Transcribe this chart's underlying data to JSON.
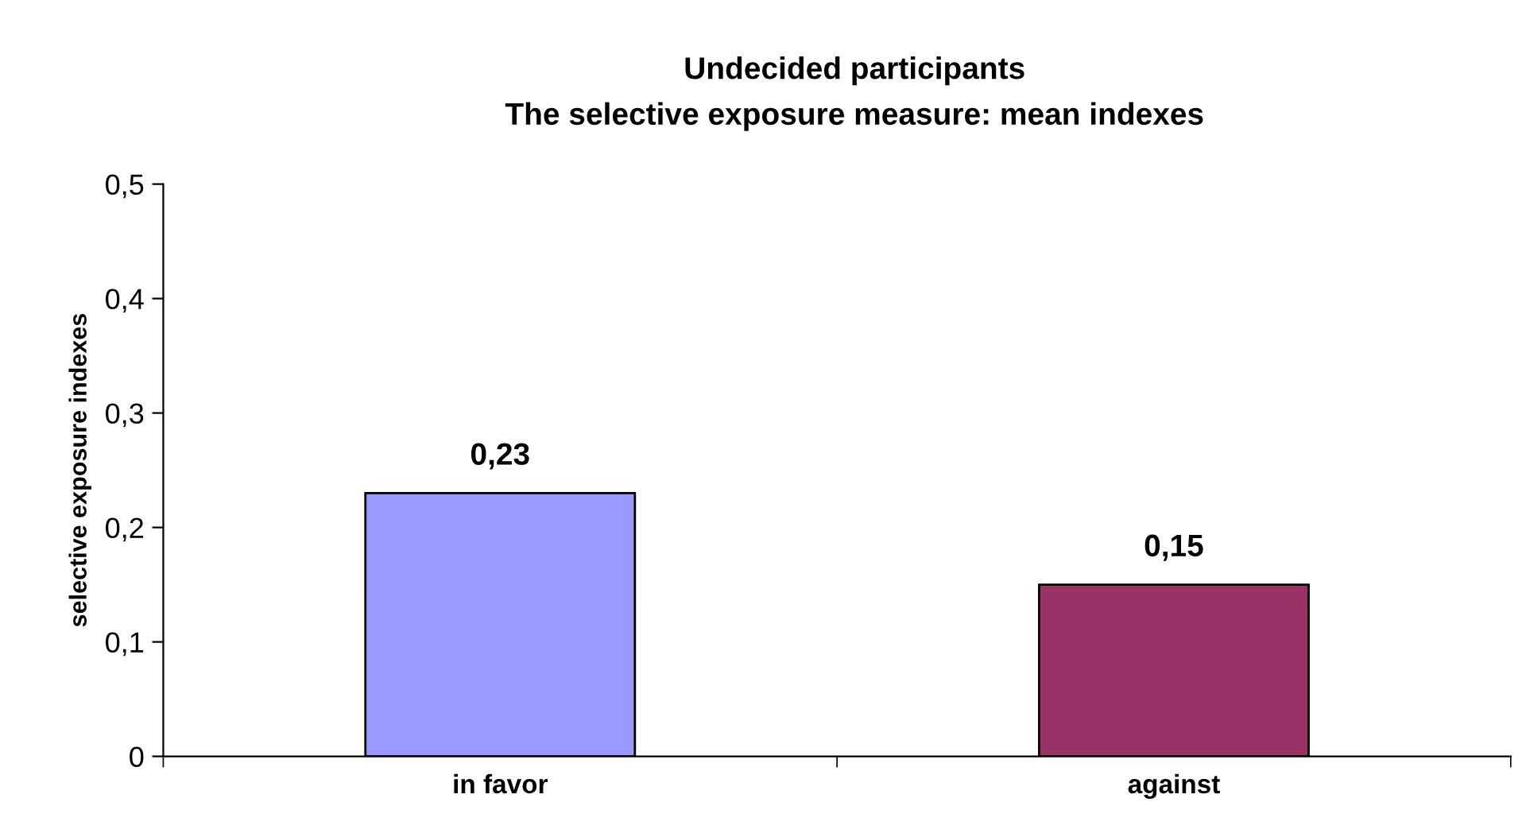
{
  "chart_data": {
    "type": "bar",
    "title": "Undecided participants",
    "subtitle": "The selective exposure measure: mean indexes",
    "ylabel": "selective exposure indexes",
    "categories": [
      "in favor",
      "against"
    ],
    "values": [
      0.23,
      0.15
    ],
    "colors": [
      "#9999ff",
      "#993366"
    ],
    "value_labels": [
      "0,23",
      "0,15"
    ],
    "ylim": [
      0,
      0.5
    ],
    "yticks": [
      {
        "value": 0,
        "label": "0"
      },
      {
        "value": 0.1,
        "label": "0,1"
      },
      {
        "value": 0.2,
        "label": "0,2"
      },
      {
        "value": 0.3,
        "label": "0,3"
      },
      {
        "value": 0.4,
        "label": "0,4"
      },
      {
        "value": 0.5,
        "label": "0,5"
      }
    ],
    "grid": false
  }
}
